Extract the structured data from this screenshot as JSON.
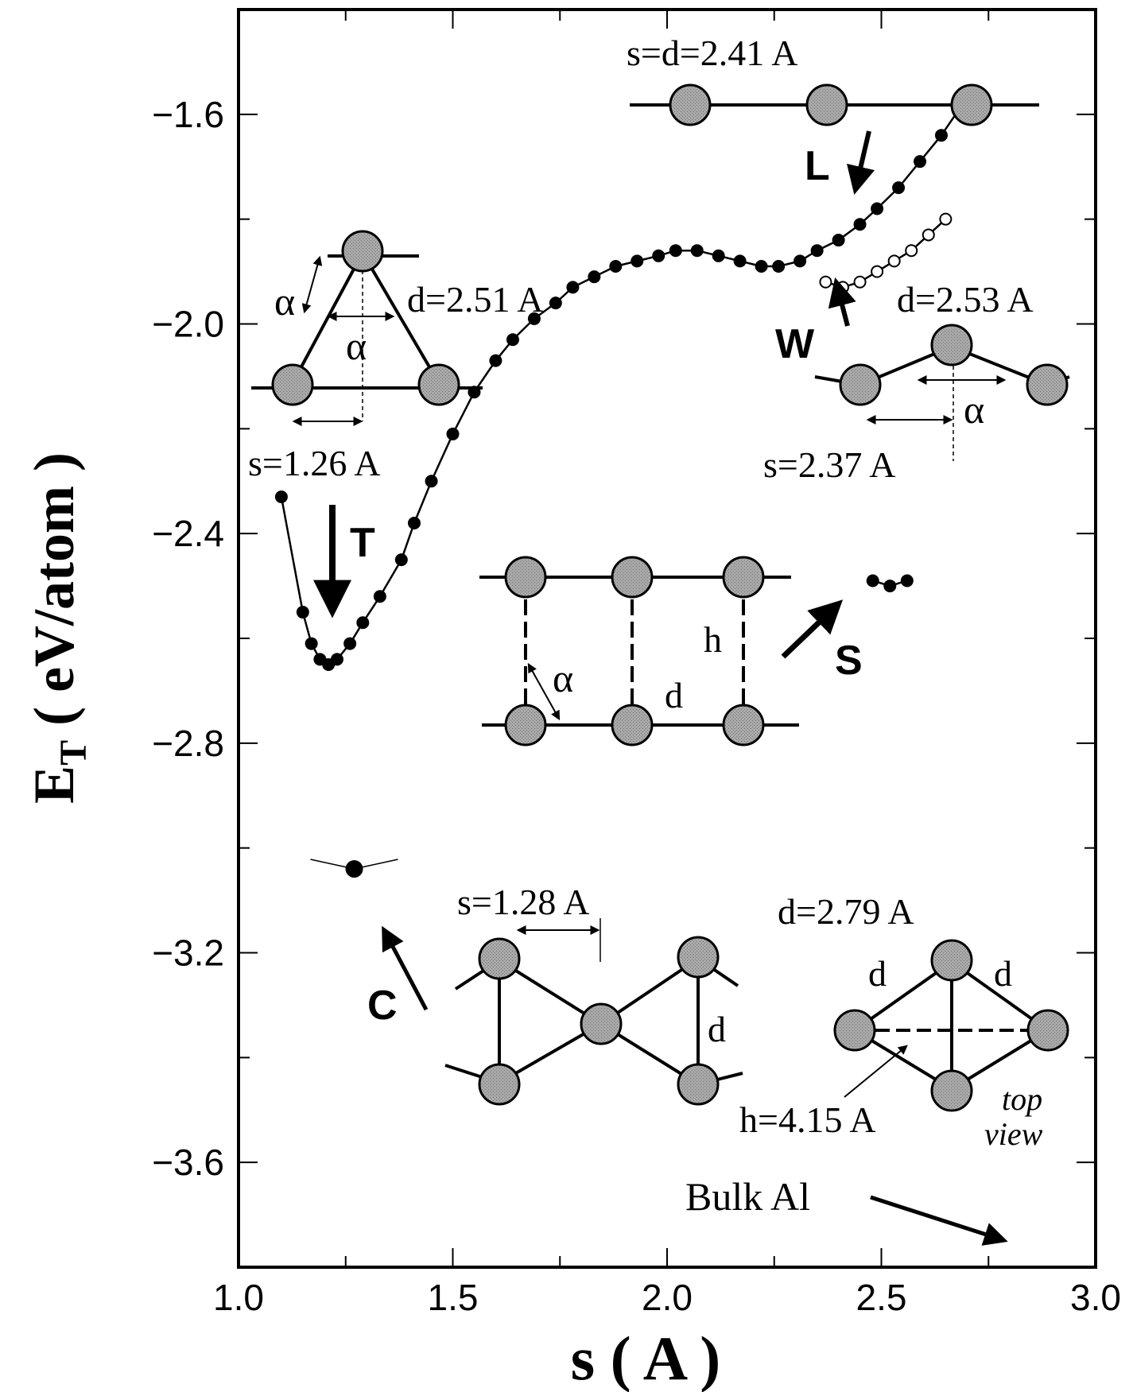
{
  "chart_data": {
    "type": "scatter",
    "xlabel": "s ( A )",
    "ylabel": "E",
    "ylabel_sub": "T",
    "ylabel_rest": " ( eV/atom )",
    "xlim": [
      1.0,
      3.0
    ],
    "ylim": [
      -3.8,
      -1.4
    ],
    "xticks": [
      1.0,
      1.5,
      2.0,
      2.5,
      3.0
    ],
    "xtick_labels": [
      "1.0",
      "1.5",
      "2.0",
      "2.5",
      "3.0"
    ],
    "yticks": [
      -1.6,
      -2.0,
      -2.4,
      -2.8,
      -3.2,
      -3.6
    ],
    "ytick_labels": [
      "−1.6",
      "−2.0",
      "−2.4",
      "−2.8",
      "−3.2",
      "−3.6"
    ],
    "grid": false,
    "series": [
      {
        "style": "filled-line",
        "x": [
          1.1,
          1.15,
          1.17,
          1.19,
          1.21,
          1.23,
          1.26,
          1.29,
          1.33,
          1.38,
          1.41,
          1.45,
          1.5,
          1.55,
          1.6,
          1.64,
          1.69,
          1.74,
          1.78,
          1.83,
          1.88,
          1.93,
          1.98,
          2.02,
          2.07,
          2.12,
          2.17,
          2.22,
          2.26,
          2.31,
          2.35,
          2.4,
          2.45,
          2.49,
          2.54,
          2.59,
          2.64,
          2.69
        ],
        "y": [
          -2.33,
          -2.55,
          -2.61,
          -2.64,
          -2.65,
          -2.64,
          -2.61,
          -2.57,
          -2.52,
          -2.45,
          -2.38,
          -2.3,
          -2.21,
          -2.13,
          -2.07,
          -2.03,
          -1.99,
          -1.96,
          -1.93,
          -1.91,
          -1.89,
          -1.88,
          -1.87,
          -1.86,
          -1.86,
          -1.87,
          -1.88,
          -1.89,
          -1.89,
          -1.88,
          -1.86,
          -1.84,
          -1.81,
          -1.78,
          -1.74,
          -1.69,
          -1.64,
          -1.58
        ]
      },
      {
        "style": "open-line",
        "x": [
          2.37,
          2.41,
          2.45,
          2.49,
          2.53,
          2.57,
          2.61,
          2.65
        ],
        "y": [
          -1.92,
          -1.93,
          -1.92,
          -1.9,
          -1.88,
          -1.86,
          -1.83,
          -1.8
        ]
      },
      {
        "style": "filled-line",
        "x": [
          2.48,
          2.52,
          2.56
        ],
        "y": [
          -2.49,
          -2.5,
          -2.49
        ]
      },
      {
        "style": "big-filled",
        "x": [
          1.27
        ],
        "y": [
          -3.04
        ]
      }
    ],
    "annotations": {
      "T": "T",
      "L": "L",
      "W": "W",
      "S": "S",
      "C": "C",
      "bulk": "Bulk Al",
      "alpha": "α",
      "tri_d": "d=2.51 A",
      "tri_s": "s=1.26 A",
      "lin_sd": "s=d=2.41 A",
      "zz_d": "d=2.53 A",
      "zz_s": "s=2.37 A",
      "lad_h": "h",
      "lad_d": "d",
      "bt_s": "s=1.28 A",
      "bt_d": "d",
      "tv_d_top": "d=2.79 A",
      "tv_d": "d",
      "tv_h": "h=4.15 A",
      "tv_top": "top",
      "tv_view": "view"
    }
  }
}
